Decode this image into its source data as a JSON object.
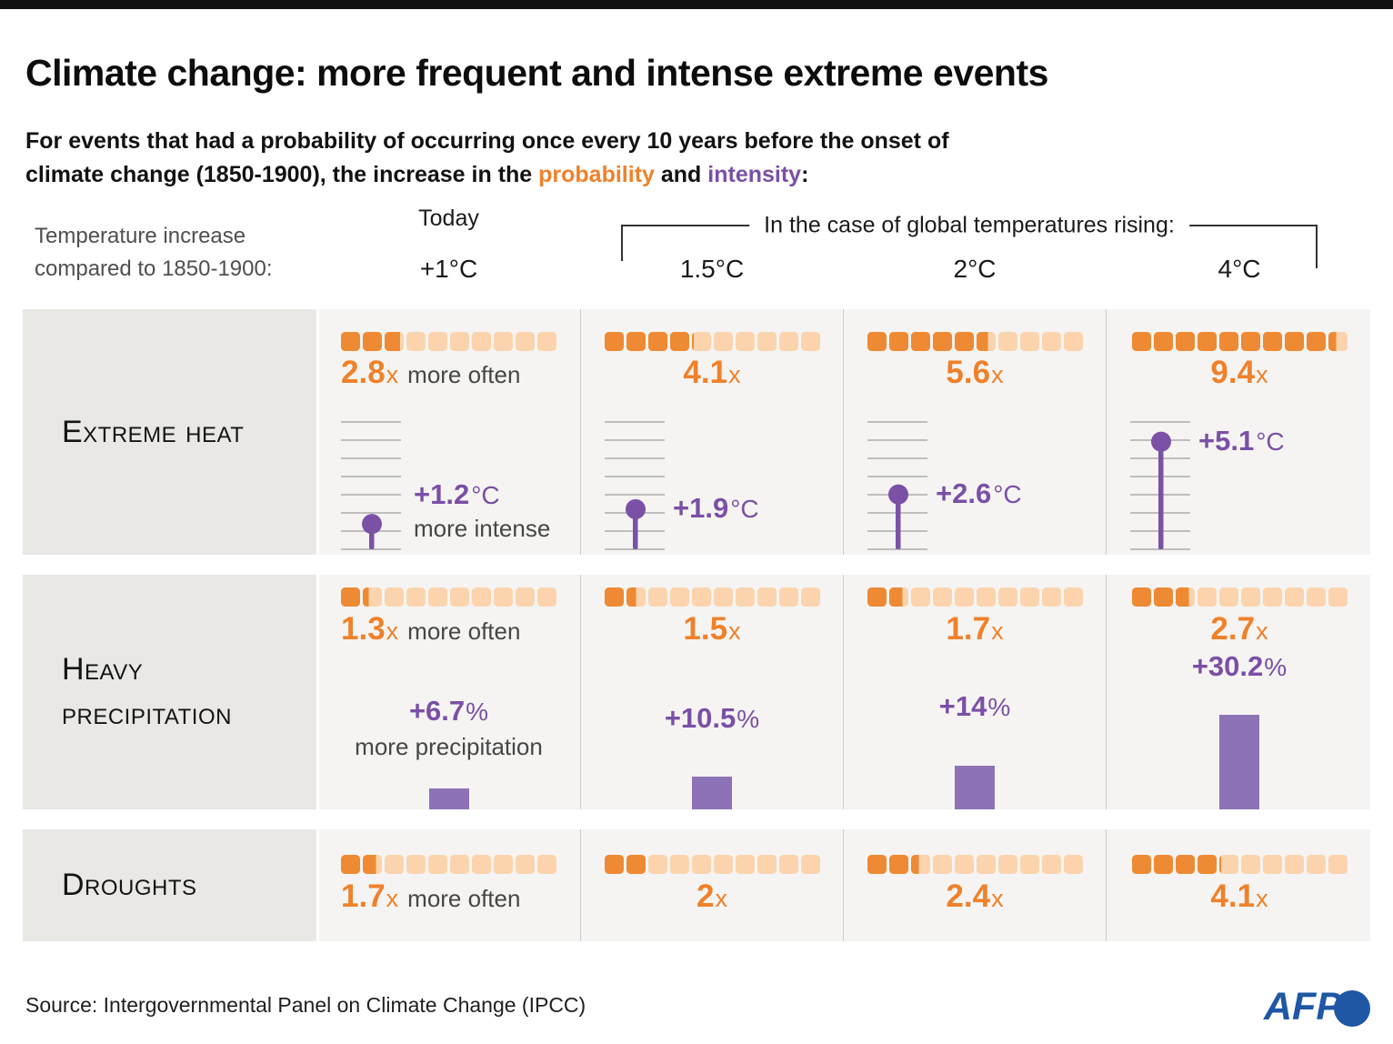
{
  "title": "Climate change: more frequent and intense extreme events",
  "subtitle": {
    "line1": "For events that had a probability of occurring once every 10 years before the onset of",
    "line2_pre": "climate change (1850-1900), the increase in the ",
    "word_probability": "probability",
    "line2_mid": " and ",
    "word_intensity": "intensity",
    "line2_end": ":"
  },
  "header": {
    "compare_label_line1": "Temperature increase",
    "compare_label_line2": "compared to 1850-1900:",
    "today_label": "Today",
    "today_temp": "+1°C",
    "bracket_label": "In the case of global temperatures rising:",
    "scenario_temps": [
      "1.5°C",
      "2°C",
      "4°C"
    ]
  },
  "grid": {
    "heat": {
      "label": "Extreme heat",
      "cells": [
        {
          "mult": "2.8",
          "x": "x",
          "often": "more often",
          "val": "+1.2",
          "unit": "°C",
          "note": "more intense"
        },
        {
          "mult": "4.1",
          "x": "x",
          "val": "+1.9",
          "unit": "°C"
        },
        {
          "mult": "5.6",
          "x": "x",
          "val": "+2.6",
          "unit": "°C"
        },
        {
          "mult": "9.4",
          "x": "x",
          "val": "+5.1",
          "unit": "°C"
        }
      ]
    },
    "precip": {
      "label": "Heavy precipitation",
      "cells": [
        {
          "mult": "1.3",
          "x": "x",
          "often": "more often",
          "val": "+6.7",
          "unit": "%",
          "note": "more precipitation"
        },
        {
          "mult": "1.5",
          "x": "x",
          "val": "+10.5",
          "unit": "%"
        },
        {
          "mult": "1.7",
          "x": "x",
          "val": "+14",
          "unit": "%"
        },
        {
          "mult": "2.7",
          "x": "x",
          "val": "+30.2",
          "unit": "%"
        }
      ]
    },
    "drought": {
      "label": "Droughts",
      "cells": [
        {
          "mult": "1.7",
          "x": "x",
          "often": "more often"
        },
        {
          "mult": "2",
          "x": "x"
        },
        {
          "mult": "2.4",
          "x": "x"
        },
        {
          "mult": "4.1",
          "x": "x"
        }
      ]
    }
  },
  "chart_data": {
    "type": "table",
    "title": "Climate change: more frequent and intense extreme events",
    "note": "For events that had a probability of occurring once every 10 years before the onset of climate change (1850-1900), the increase in the probability and intensity:",
    "scenarios": [
      "Today +1°C",
      "1.5°C",
      "2°C",
      "4°C"
    ],
    "squares_total": 10,
    "rows": [
      {
        "event": "Extreme heat",
        "frequency_multiplier": [
          2.8,
          4.1,
          5.6,
          9.4
        ],
        "intensity_labels": [
          "+1.2°C",
          "+1.9°C",
          "+2.6°C",
          "+5.1°C"
        ],
        "intensity_values": [
          1.2,
          1.9,
          2.6,
          5.1
        ]
      },
      {
        "event": "Heavy precipitation",
        "frequency_multiplier": [
          1.3,
          1.5,
          1.7,
          2.7
        ],
        "intensity_labels": [
          "+6.7%",
          "+10.5%",
          "+14%",
          "+30.2%"
        ],
        "intensity_values": [
          6.7,
          10.5,
          14,
          30.2
        ]
      },
      {
        "event": "Droughts",
        "frequency_multiplier": [
          1.7,
          2,
          2.4,
          4.1
        ],
        "intensity_labels": null,
        "intensity_values": null
      }
    ]
  },
  "colors": {
    "orange_dark": "#ee8a33",
    "orange_light": "#fbd4ae",
    "orange_text": "#f0812a",
    "purple_text": "#7b4fa6",
    "purple_pin": "#7b51a5",
    "purple_bar": "#8d72b8",
    "scale_line": "#9e9e9e",
    "label_cell_bg": "#e9e8e5",
    "data_cell_bg": "#f5f4f2",
    "afp_blue": "#1f57a4"
  },
  "footer": {
    "source": "Source: Intergovernmental Panel on Climate Change (IPCC)",
    "logo_text": "AFP"
  }
}
